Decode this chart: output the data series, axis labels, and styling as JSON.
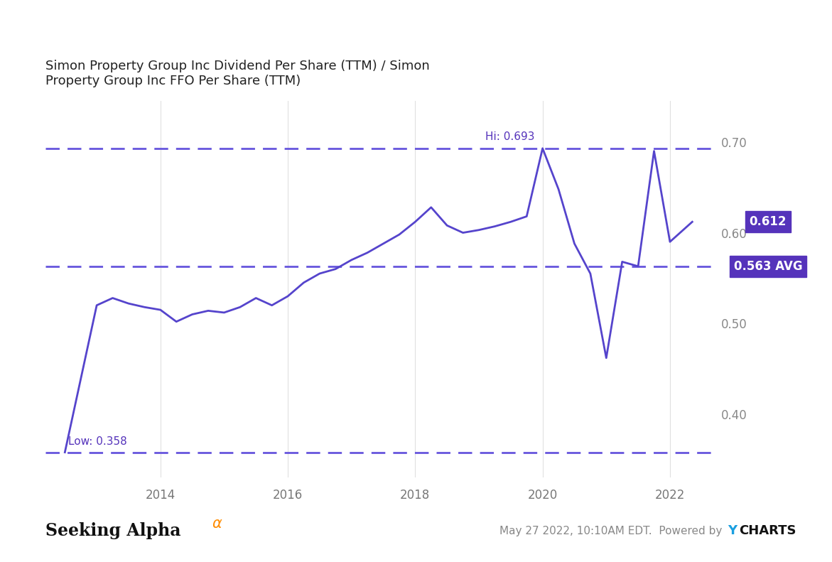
{
  "title": "Simon Property Group Inc Dividend Per Share (TTM) / Simon\nProperty Group Inc FFO Per Share (TTM)",
  "title_fontsize": 13,
  "line_color": "#5544cc",
  "line_width": 2.0,
  "background_color": "#ffffff",
  "grid_color": "#e0e0e0",
  "avg_value": 0.563,
  "hi_value": 0.693,
  "low_value": 0.358,
  "last_value": 0.612,
  "dashed_line_color": "#6655dd",
  "label_box_color": "#5533bb",
  "label_text_color": "#ffffff",
  "hi_label_color": "#5533bb",
  "low_label_color": "#5533bb",
  "xlim": [
    2012.2,
    2022.65
  ],
  "ylim": [
    0.33,
    0.745
  ],
  "x_data": [
    2012.5,
    2013.0,
    2013.25,
    2013.5,
    2013.75,
    2014.0,
    2014.25,
    2014.5,
    2014.75,
    2015.0,
    2015.25,
    2015.5,
    2015.75,
    2016.0,
    2016.25,
    2016.5,
    2016.75,
    2017.0,
    2017.25,
    2017.5,
    2017.75,
    2018.0,
    2018.25,
    2018.5,
    2018.75,
    2019.0,
    2019.25,
    2019.5,
    2019.75,
    2020.0,
    2020.25,
    2020.5,
    2020.75,
    2021.0,
    2021.25,
    2021.5,
    2021.75,
    2022.0,
    2022.35
  ],
  "y_data": [
    0.358,
    0.52,
    0.528,
    0.522,
    0.518,
    0.515,
    0.502,
    0.51,
    0.514,
    0.512,
    0.518,
    0.528,
    0.52,
    0.53,
    0.545,
    0.555,
    0.56,
    0.57,
    0.578,
    0.588,
    0.598,
    0.612,
    0.628,
    0.608,
    0.6,
    0.603,
    0.607,
    0.612,
    0.618,
    0.693,
    0.648,
    0.588,
    0.555,
    0.462,
    0.568,
    0.563,
    0.69,
    0.59,
    0.612
  ],
  "xticks": [
    2014,
    2016,
    2018,
    2020,
    2022
  ],
  "xtick_labels": [
    "2014",
    "2016",
    "2018",
    "2020",
    "2022"
  ],
  "yticks_right": [
    0.4,
    0.5,
    0.6,
    0.7
  ]
}
